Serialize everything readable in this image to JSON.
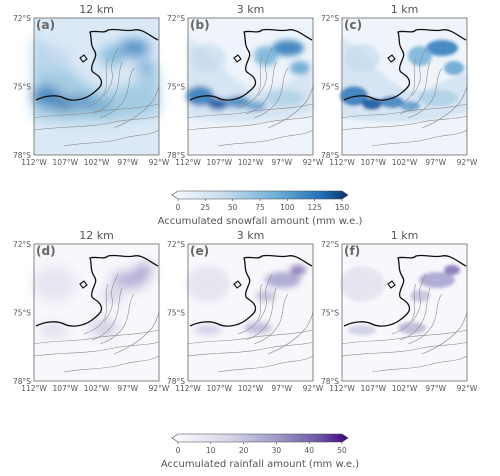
{
  "figure": {
    "resolutions": [
      "12 km",
      "3 km",
      "1 km"
    ],
    "panel_letters": {
      "row1": [
        "(a)",
        "(b)",
        "(c)"
      ],
      "row2": [
        "(d)",
        "(e)",
        "(f)"
      ]
    },
    "lat_ticks": [
      "72°S",
      "75°S",
      "78°S"
    ],
    "lon_ticks": [
      "112°W",
      "107°W",
      "102°W",
      "97°W",
      "92°W"
    ],
    "snow_colorbar": {
      "ticks": [
        "0",
        "25",
        "50",
        "75",
        "100",
        "125",
        "150"
      ],
      "label": "Accumulated snowfall amount (mm w.e.)",
      "color_low": "#ffffff",
      "color_high": "#08306b"
    },
    "rain_colorbar": {
      "ticks": [
        "0",
        "10",
        "20",
        "30",
        "40",
        "50"
      ],
      "label": "Accumulated rainfall amount (mm w.e.)",
      "color_low": "#ffffff",
      "color_high": "#3f007d"
    }
  }
}
